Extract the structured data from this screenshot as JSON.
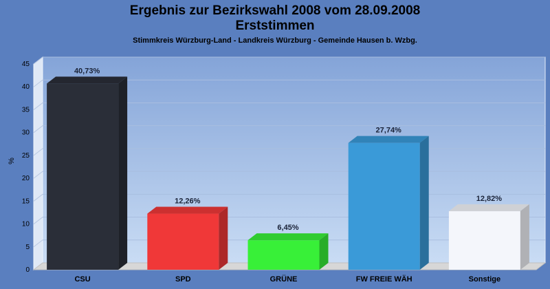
{
  "title_line1": "Ergebnis zur Bezirkswahl 2008 vom 28.09.2008",
  "title_line2": "Erststimmen",
  "subtitle": "Stimmkreis Würzburg-Land - Landkreis Würzburg - Gemeinde Hausen b. Wzbg.",
  "chart_data": {
    "type": "bar",
    "title": "Ergebnis zur Bezirkswahl 2008 vom 28.09.2008 Erststimmen",
    "subtitle": "Stimmkreis Würzburg-Land - Landkreis Würzburg - Gemeinde Hausen b. Wzbg.",
    "ylabel": "%",
    "xlabel": "",
    "ylim": [
      0,
      45
    ],
    "yticks": [
      0,
      5,
      10,
      15,
      20,
      25,
      30,
      35,
      40,
      45
    ],
    "grid": true,
    "categories": [
      "CSU",
      "SPD",
      "GRÜNE",
      "FW FREIE WÄH",
      "Sonstige"
    ],
    "values": [
      40.73,
      12.26,
      6.45,
      27.74,
      12.82
    ],
    "value_labels": [
      "40,73%",
      "12,26%",
      "6,45%",
      "27,74%",
      "12,82%"
    ],
    "colors": [
      "#2a2e38",
      "#f03838",
      "#38f038",
      "#3a9ad8",
      "#f4f6fb"
    ]
  }
}
